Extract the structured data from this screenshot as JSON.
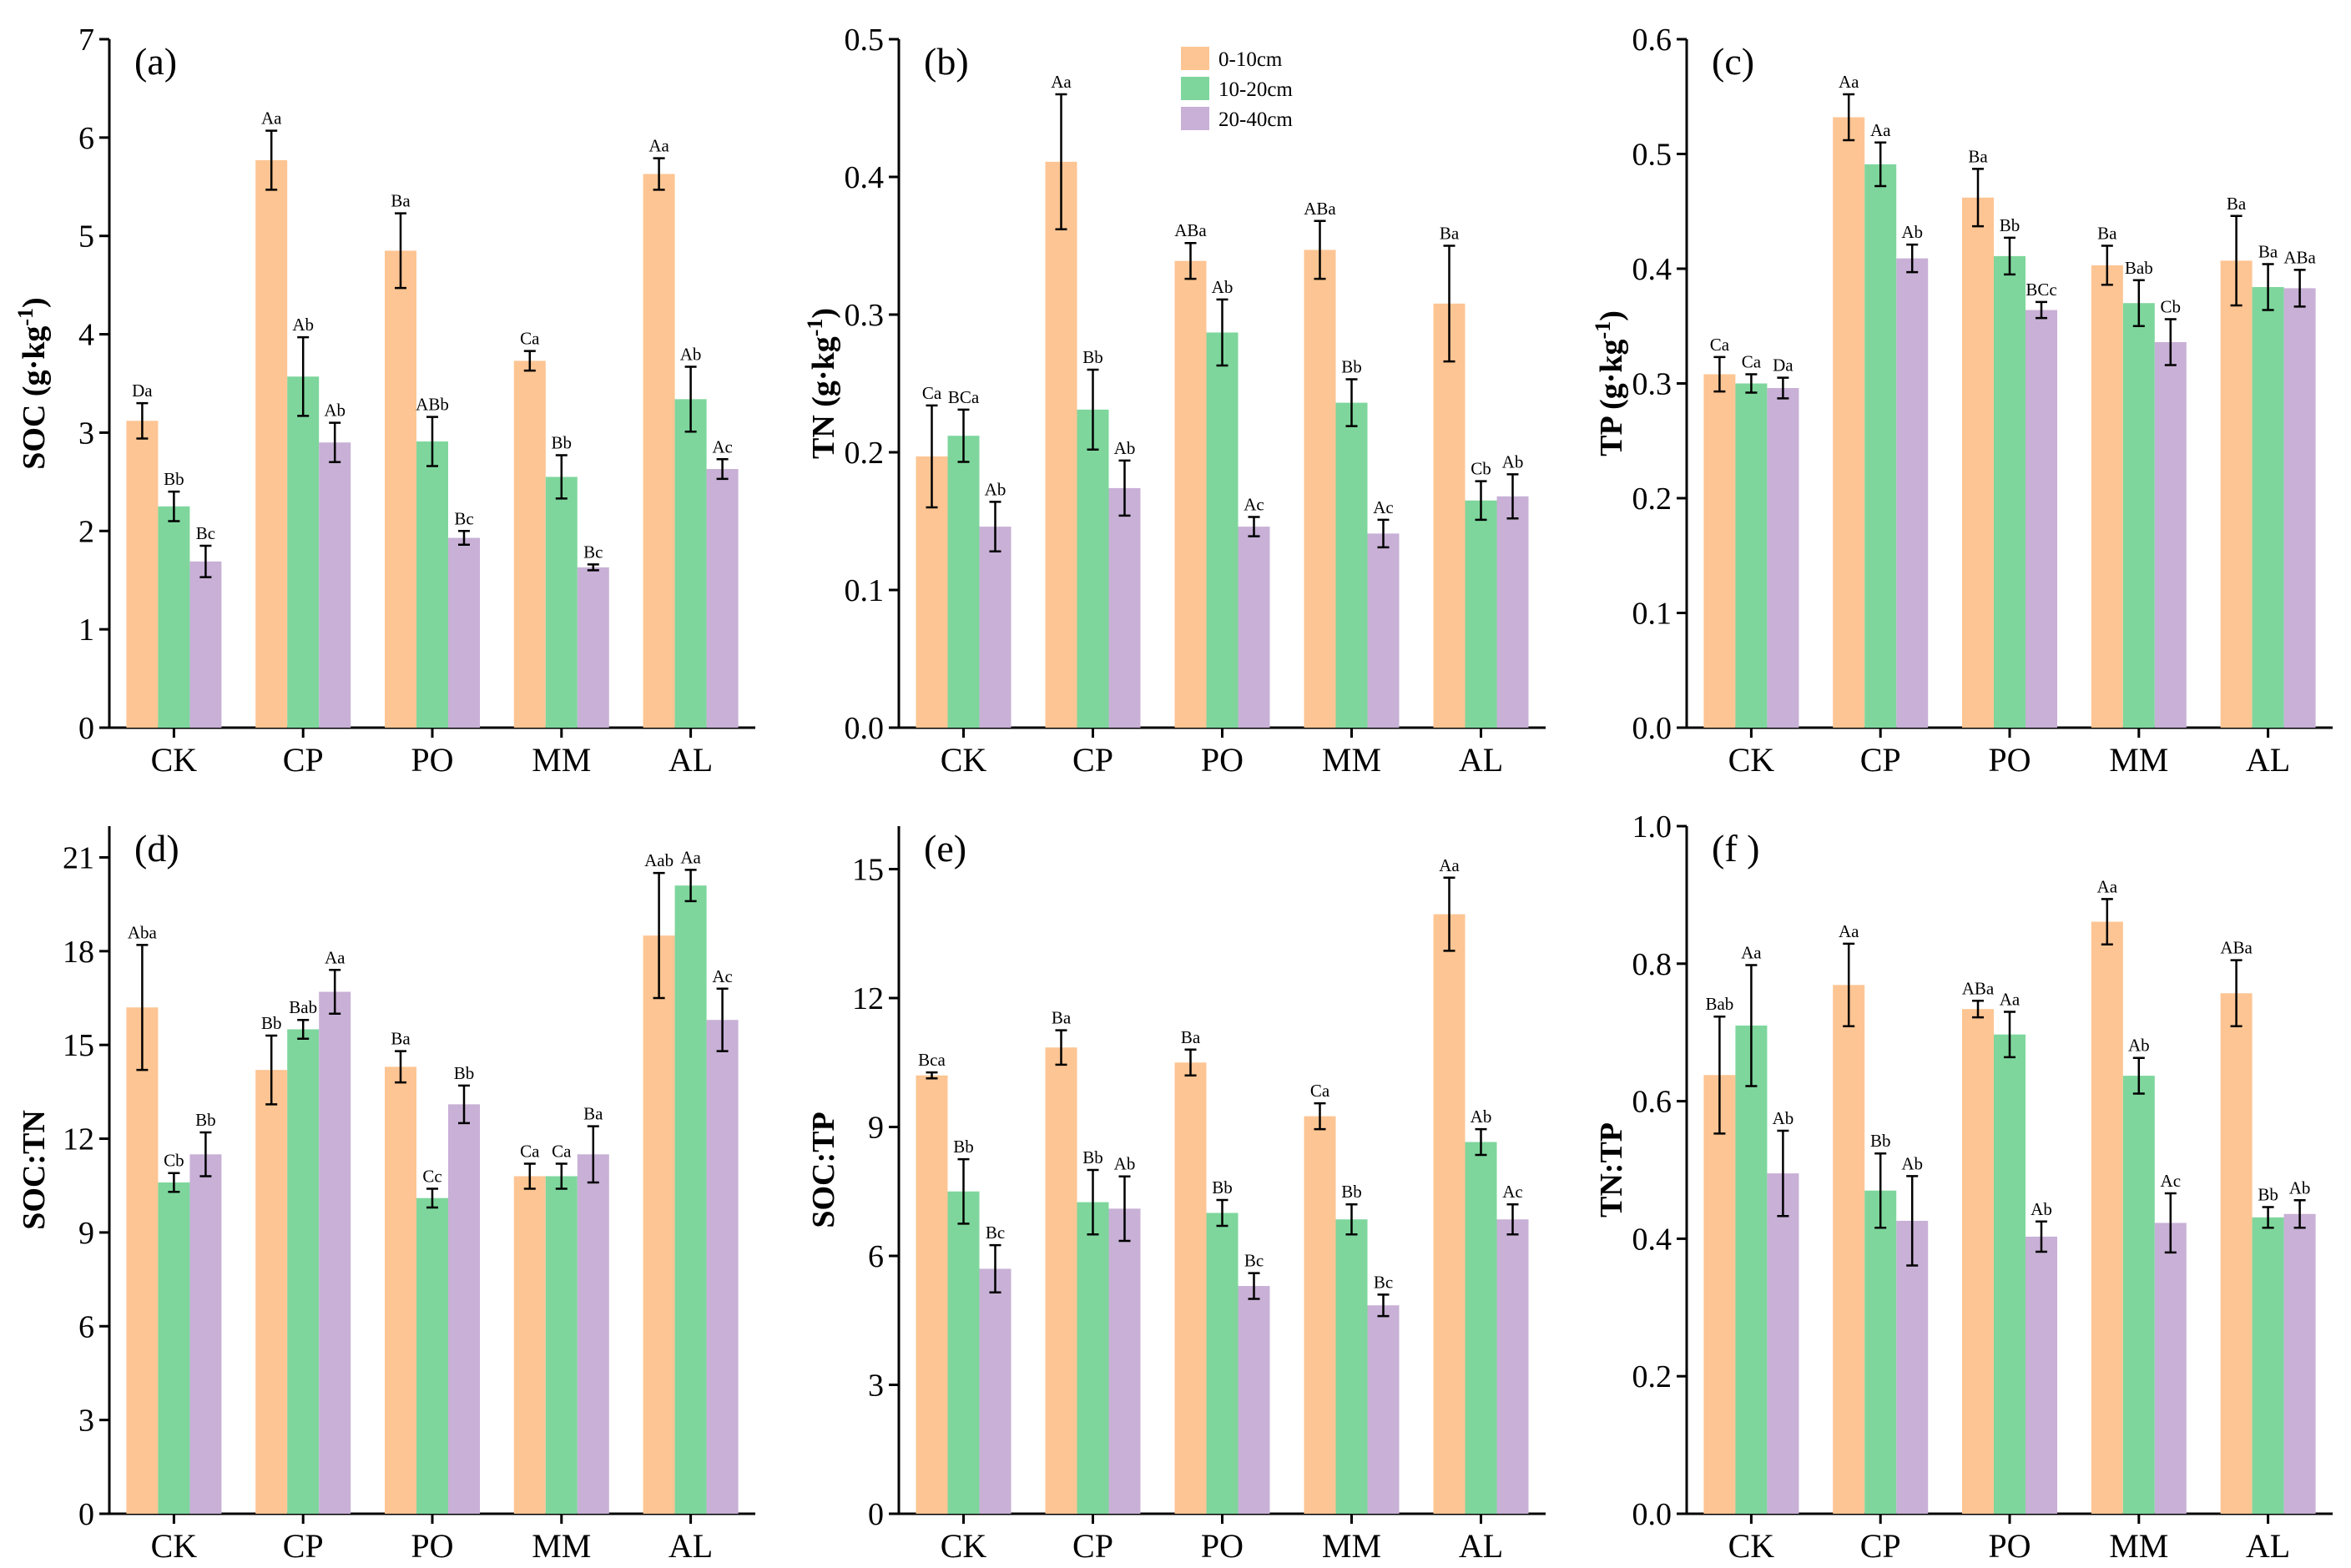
{
  "colors": {
    "0-10cm": "#FDC593",
    "10-20cm": "#7ED69C",
    "20-40cm": "#C8B0D6"
  },
  "legend": {
    "placement": "top-center of panel (b)",
    "entries": [
      "0-10cm",
      "10-20cm",
      "20-40cm"
    ]
  },
  "chart_data": [
    {
      "type": "bar",
      "panel": "(a)",
      "ylabel": "SOC (g·kg",
      "ylabel_sup": "-1",
      "ylabel_close": ")",
      "categories": [
        "CK",
        "CP",
        "PO",
        "MM",
        "AL"
      ],
      "ylim": [
        0,
        7
      ],
      "yticks": [
        "0",
        "1",
        "2",
        "3",
        "4",
        "5",
        "6",
        "7"
      ],
      "grid": false,
      "series": [
        {
          "name": "0-10cm",
          "values": [
            3.12,
            5.77,
            4.85,
            3.73,
            5.63
          ],
          "errors": [
            0.18,
            0.3,
            0.38,
            0.1,
            0.16
          ],
          "labels": [
            "Da",
            "Aa",
            "Ba",
            "Ca",
            "Aa"
          ]
        },
        {
          "name": "10-20cm",
          "values": [
            2.25,
            3.57,
            2.91,
            2.55,
            3.34
          ],
          "errors": [
            0.15,
            0.4,
            0.25,
            0.22,
            0.33
          ],
          "labels": [
            "Bb",
            "Ab",
            "ABb",
            "Bb",
            "Ab"
          ]
        },
        {
          "name": "20-40cm",
          "values": [
            1.69,
            2.9,
            1.93,
            1.63,
            2.63
          ],
          "errors": [
            0.16,
            0.2,
            0.07,
            0.03,
            0.1
          ],
          "labels": [
            "Bc",
            "Ab",
            "Bc",
            "Bc",
            "Ac"
          ]
        }
      ]
    },
    {
      "type": "bar",
      "panel": "(b)",
      "ylabel": "TN (g·kg",
      "ylabel_sup": "-1",
      "ylabel_close": ")",
      "categories": [
        "CK",
        "CP",
        "PO",
        "MM",
        "AL"
      ],
      "ylim": [
        0,
        0.5
      ],
      "yticks": [
        "0.0",
        "0.1",
        "0.2",
        "0.3",
        "0.4",
        "0.5"
      ],
      "grid": false,
      "series": [
        {
          "name": "0-10cm",
          "values": [
            0.197,
            0.411,
            0.339,
            0.347,
            0.308
          ],
          "errors": [
            0.037,
            0.049,
            0.013,
            0.021,
            0.042
          ],
          "labels": [
            "Ca",
            "Aa",
            "ABa",
            "ABa",
            "Ba"
          ]
        },
        {
          "name": "10-20cm",
          "values": [
            0.212,
            0.231,
            0.287,
            0.236,
            0.165
          ],
          "errors": [
            0.019,
            0.029,
            0.024,
            0.017,
            0.014
          ],
          "labels": [
            "BCa",
            "Bb",
            "Ab",
            "Bb",
            "Cb"
          ]
        },
        {
          "name": "20-40cm",
          "values": [
            0.146,
            0.174,
            0.146,
            0.141,
            0.168
          ],
          "errors": [
            0.018,
            0.02,
            0.007,
            0.01,
            0.016
          ],
          "labels": [
            "Ab",
            "Ab",
            "Ac",
            "Ac",
            "Ab"
          ]
        }
      ]
    },
    {
      "type": "bar",
      "panel": "(c)",
      "ylabel": "TP (g·kg",
      "ylabel_sup": "-1",
      "ylabel_close": ")",
      "categories": [
        "CK",
        "CP",
        "PO",
        "MM",
        "AL"
      ],
      "ylim": [
        0,
        0.6
      ],
      "yticks": [
        "0.0",
        "0.1",
        "0.2",
        "0.3",
        "0.4",
        "0.5",
        "0.6"
      ],
      "grid": false,
      "series": [
        {
          "name": "0-10cm",
          "values": [
            0.308,
            0.532,
            0.462,
            0.403,
            0.407
          ],
          "errors": [
            0.015,
            0.02,
            0.025,
            0.017,
            0.039
          ],
          "labels": [
            "Ca",
            "Aa",
            "Ba",
            "Ba",
            "Ba"
          ]
        },
        {
          "name": "10-20cm",
          "values": [
            0.3,
            0.491,
            0.411,
            0.37,
            0.384
          ],
          "errors": [
            0.008,
            0.019,
            0.016,
            0.02,
            0.02
          ],
          "labels": [
            "Ca",
            "Aa",
            "Bb",
            "Bab",
            "Ba"
          ]
        },
        {
          "name": "20-40cm",
          "values": [
            0.296,
            0.409,
            0.364,
            0.336,
            0.383
          ],
          "errors": [
            0.009,
            0.012,
            0.007,
            0.02,
            0.016
          ],
          "labels": [
            "Da",
            "Ab",
            "BCc",
            "Cb",
            "ABa"
          ]
        }
      ]
    },
    {
      "type": "bar",
      "panel": "(d)",
      "ylabel": "SOC:TN",
      "categories": [
        "CK",
        "CP",
        "PO",
        "MM",
        "AL"
      ],
      "ylim": [
        0,
        22
      ],
      "yticks": [
        "0",
        "3",
        "6",
        "9",
        "12",
        "15",
        "18",
        "21"
      ],
      "ytick_values": [
        0,
        3,
        6,
        9,
        12,
        15,
        18,
        21
      ],
      "grid": false,
      "series": [
        {
          "name": "0-10cm",
          "values": [
            16.2,
            14.2,
            14.3,
            10.8,
            18.5
          ],
          "errors": [
            2.0,
            1.1,
            0.5,
            0.4,
            2.0
          ],
          "labels": [
            "Aba",
            "Bb",
            "Ba",
            "Ca",
            "Aab"
          ]
        },
        {
          "name": "10-20cm",
          "values": [
            10.6,
            15.5,
            10.1,
            10.8,
            20.1
          ],
          "errors": [
            0.3,
            0.3,
            0.3,
            0.4,
            0.5
          ],
          "labels": [
            "Cb",
            "Bab",
            "Cc",
            "Ca",
            "Aa"
          ]
        },
        {
          "name": "20-40cm",
          "values": [
            11.5,
            16.7,
            13.1,
            11.5,
            15.8
          ],
          "errors": [
            0.7,
            0.7,
            0.6,
            0.9,
            1.0
          ],
          "labels": [
            "Bb",
            "Aa",
            "Bb",
            "Ba",
            "Ac"
          ]
        }
      ]
    },
    {
      "type": "bar",
      "panel": "(e)",
      "ylabel": "SOC:TP",
      "categories": [
        "CK",
        "CP",
        "PO",
        "MM",
        "AL"
      ],
      "ylim": [
        0,
        16
      ],
      "yticks": [
        "0",
        "3",
        "6",
        "9",
        "12",
        "15"
      ],
      "ytick_values": [
        0,
        3,
        6,
        9,
        12,
        15
      ],
      "grid": false,
      "series": [
        {
          "name": "0-10cm",
          "values": [
            10.2,
            10.85,
            10.5,
            9.25,
            13.95
          ],
          "errors": [
            0.07,
            0.4,
            0.3,
            0.3,
            0.85
          ],
          "labels": [
            "Bca",
            "Ba",
            "Ba",
            "Ca",
            "Aa"
          ]
        },
        {
          "name": "10-20cm",
          "values": [
            7.5,
            7.25,
            7.0,
            6.85,
            8.65
          ],
          "errors": [
            0.75,
            0.75,
            0.3,
            0.35,
            0.3
          ],
          "labels": [
            "Bb",
            "Bb",
            "Bb",
            "Bb",
            "Ab"
          ]
        },
        {
          "name": "20-40cm",
          "values": [
            5.7,
            7.1,
            5.3,
            4.85,
            6.85
          ],
          "errors": [
            0.55,
            0.75,
            0.3,
            0.25,
            0.35
          ],
          "labels": [
            "Bc",
            "Ab",
            "Bc",
            "Bc",
            "Ac"
          ]
        }
      ]
    },
    {
      "type": "bar",
      "panel": "(f )",
      "ylabel": "TN:TP",
      "categories": [
        "CK",
        "CP",
        "PO",
        "MM",
        "AL"
      ],
      "ylim": [
        0,
        1.0
      ],
      "yticks": [
        "0.0",
        "0.2",
        "0.4",
        "0.6",
        "0.8",
        "1.0"
      ],
      "ytick_values": [
        0,
        0.2,
        0.4,
        0.6,
        0.8,
        1.0
      ],
      "grid": false,
      "series": [
        {
          "name": "0-10cm",
          "values": [
            0.638,
            0.769,
            0.734,
            0.861,
            0.757
          ],
          "errors": [
            0.085,
            0.06,
            0.012,
            0.033,
            0.048
          ],
          "labels": [
            "Bab",
            "Aa",
            "ABa",
            "Aa",
            "ABa"
          ]
        },
        {
          "name": "10-20cm",
          "values": [
            0.71,
            0.47,
            0.697,
            0.637,
            0.431
          ],
          "errors": [
            0.088,
            0.054,
            0.033,
            0.026,
            0.015
          ],
          "labels": [
            "Aa",
            "Bb",
            "Aa",
            "Ab",
            "Bb"
          ]
        },
        {
          "name": "20-40cm",
          "values": [
            0.495,
            0.426,
            0.403,
            0.423,
            0.436
          ],
          "errors": [
            0.062,
            0.065,
            0.022,
            0.043,
            0.02
          ],
          "labels": [
            "Ab",
            "Ab",
            "Ab",
            "Ac",
            "Ab"
          ]
        }
      ]
    }
  ]
}
